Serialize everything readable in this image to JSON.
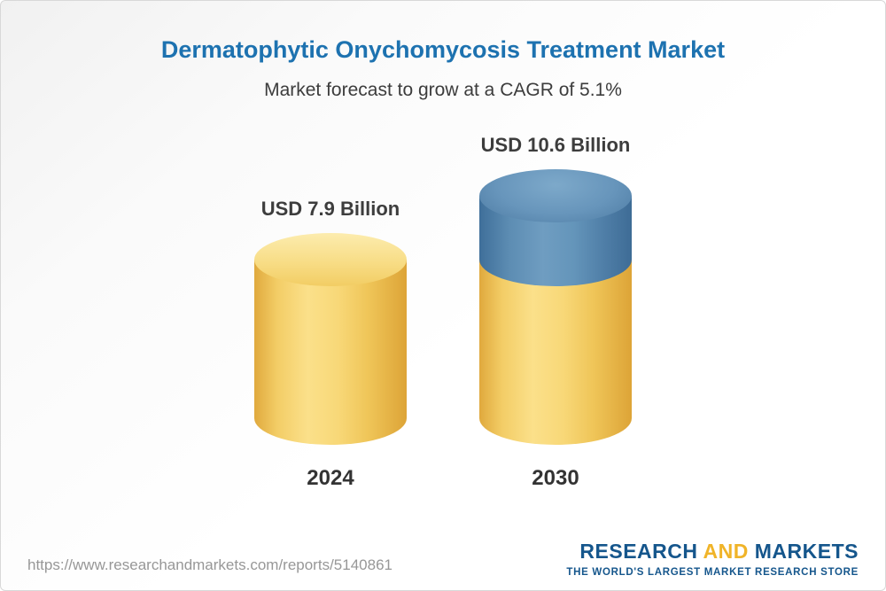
{
  "header": {
    "title": "Dermatophytic Onychomycosis Treatment Market",
    "subtitle": "Market forecast to grow at a CAGR of 5.1%"
  },
  "chart_data": {
    "type": "bar",
    "variant": "cylinder-3d",
    "categories": [
      "2024",
      "2030"
    ],
    "values": [
      7.9,
      10.6
    ],
    "unit": "USD Billion",
    "value_labels": [
      "USD 7.9 Billion",
      "USD 10.6 Billion"
    ],
    "title": "Dermatophytic Onychomycosis Treatment Market",
    "subtitle": "Market forecast to grow at a CAGR of 5.1%",
    "cagr_percent": 5.1,
    "ylim": [
      0,
      11
    ],
    "grid": false,
    "legend": "none",
    "colors": {
      "base_segment": "#F3CD62",
      "growth_segment": "#5B89B1",
      "title_text": "#1D72B0",
      "label_text": "#3D3D3D"
    }
  },
  "footer": {
    "url": "https://www.researchandmarkets.com/reports/5140861",
    "logo": {
      "word1": "RESEARCH",
      "word2": "AND",
      "word3": "MARKETS",
      "tagline": "THE WORLD'S LARGEST MARKET RESEARCH STORE"
    }
  }
}
